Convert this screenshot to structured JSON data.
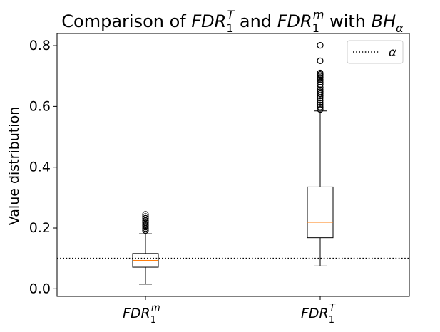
{
  "chart_data": {
    "type": "box",
    "title": {
      "prefix": "Comparison of ",
      "t_main": "FDR",
      "t_sub": "1",
      "t_sup": "T",
      "and": " and ",
      "m_main": "FDR",
      "m_sub": "1",
      "m_sup": "m",
      "with": " with ",
      "bh_main": "BH",
      "bh_sub": "α"
    },
    "ylabel": "Value distribution",
    "xlabel": "",
    "ylim": [
      -0.025,
      0.84
    ],
    "yticks": [
      0.0,
      0.2,
      0.4,
      0.6,
      0.8
    ],
    "ytick_labels": [
      "0.0",
      "0.2",
      "0.4",
      "0.6",
      "0.8"
    ],
    "grid": false,
    "legend": {
      "position": "top-right",
      "entries": [
        {
          "label": "α",
          "style": "dotted",
          "color": "#000000"
        }
      ]
    },
    "reference_line": {
      "y": 0.1,
      "style": "dotted",
      "color": "#000000"
    },
    "boxes": [
      {
        "label_main": "FDR",
        "label_sub": "1",
        "label_sup": "m",
        "q1": 0.071,
        "median": 0.093,
        "q3": 0.116,
        "whisker_low": 0.015,
        "whisker_high": 0.181,
        "fliers": [
          0.192,
          0.198,
          0.203,
          0.208,
          0.212,
          0.217,
          0.221,
          0.225,
          0.232,
          0.238,
          0.245
        ]
      },
      {
        "label_main": "FDR",
        "label_sub": "1",
        "label_sup": "T",
        "q1": 0.168,
        "median": 0.219,
        "q3": 0.335,
        "whisker_low": 0.075,
        "whisker_high": 0.585,
        "fliers": [
          0.59,
          0.598,
          0.605,
          0.612,
          0.62,
          0.628,
          0.635,
          0.642,
          0.648,
          0.655,
          0.663,
          0.672,
          0.68,
          0.688,
          0.695,
          0.7,
          0.705,
          0.71,
          0.75,
          0.801
        ]
      }
    ],
    "colors": {
      "box": "#000000",
      "median": "#ff7f0e",
      "flier_edge": "#000000"
    }
  }
}
